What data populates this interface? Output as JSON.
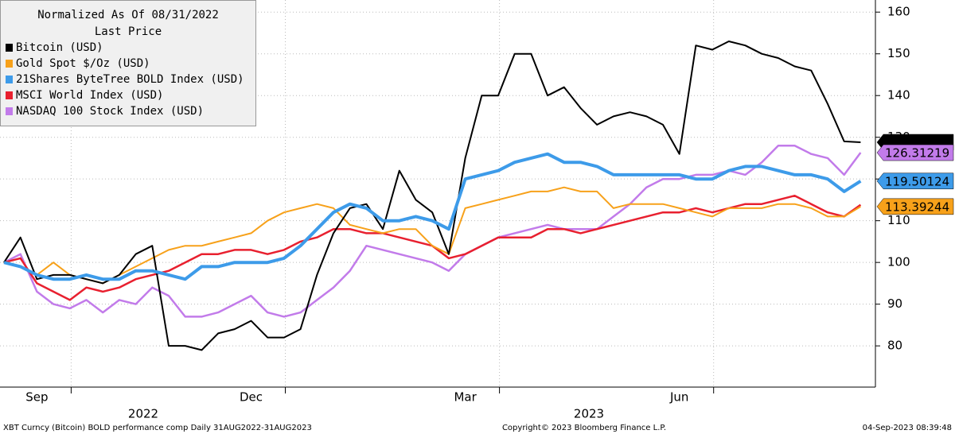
{
  "chart_data": {
    "type": "line",
    "legend_title": "Normalized As Of 08/31/2022",
    "legend_subtitle": "Last Price",
    "legend_position": "upper left",
    "grid": true,
    "categories": [
      null,
      null,
      "Sep",
      null,
      null,
      null,
      null,
      null,
      null,
      null,
      null,
      null,
      null,
      null,
      null,
      "Dec",
      null,
      null,
      null,
      null,
      null,
      null,
      null,
      null,
      null,
      null,
      null,
      null,
      "Mar",
      null,
      null,
      null,
      null,
      null,
      null,
      null,
      null,
      null,
      null,
      null,
      null,
      "Jun",
      null,
      null,
      null,
      null,
      null,
      null,
      null,
      null,
      null,
      null,
      null
    ],
    "year_labels": [
      "2022",
      "2023"
    ],
    "ylim": [
      70.5,
      162.9
    ],
    "yticks": [
      80,
      90,
      100,
      110,
      120,
      130,
      140,
      150,
      160
    ],
    "series": [
      {
        "name": "Bitcoin (USD)",
        "color": "#000000",
        "values": [
          100,
          106,
          96,
          97,
          97,
          96,
          95,
          97,
          102,
          104,
          80,
          80,
          79,
          83,
          84,
          86,
          82,
          82,
          84,
          97,
          107,
          113,
          114,
          108,
          122,
          115,
          112,
          102,
          125,
          140,
          140,
          150,
          150,
          140,
          142,
          137,
          133,
          135,
          136,
          135,
          133,
          126,
          152,
          151,
          153,
          152,
          150,
          149,
          147,
          146,
          138,
          129,
          128.79906
        ]
      },
      {
        "name": "Gold Spot $/Oz (USD)",
        "color": "#f7a11a",
        "values": [
          100,
          99,
          97,
          100,
          97,
          96,
          95,
          97,
          99,
          101,
          103,
          104,
          104,
          105,
          106,
          107,
          110,
          112,
          113,
          114,
          113,
          109,
          108,
          107,
          108,
          108,
          104,
          102,
          113,
          114,
          115,
          116,
          117,
          117,
          118,
          117,
          117,
          113,
          114,
          114,
          114,
          113,
          112,
          111,
          113,
          113,
          113,
          114,
          114,
          113,
          111,
          111,
          113.39244
        ]
      },
      {
        "name": "21Shares ByteTree BOLD Index (USD)",
        "color": "#3d9be9",
        "values": [
          100,
          99,
          97,
          96,
          96,
          97,
          96,
          96,
          98,
          98,
          97,
          96,
          99,
          99,
          100,
          100,
          100,
          101,
          104,
          108,
          112,
          114,
          113,
          110,
          110,
          111,
          110,
          108,
          120,
          121,
          122,
          124,
          125,
          126,
          124,
          124,
          123,
          121,
          121,
          121,
          121,
          121,
          120,
          120,
          122,
          123,
          123,
          122,
          121,
          121,
          120,
          117,
          119.50124
        ]
      },
      {
        "name": "MSCI World Index (USD)",
        "color": "#e8202f",
        "values": [
          100,
          101,
          95,
          93,
          91,
          94,
          93,
          94,
          96,
          97,
          98,
          100,
          102,
          102,
          103,
          103,
          102,
          103,
          105,
          106,
          108,
          108,
          107,
          107,
          106,
          105,
          104,
          101,
          102,
          104,
          106,
          106,
          106,
          108,
          108,
          107,
          108,
          109,
          110,
          111,
          112,
          112,
          113,
          112,
          113,
          114,
          114,
          115,
          116,
          114,
          112,
          111,
          113.8
        ]
      },
      {
        "name": "NASDAQ 100 Stock Index (USD)",
        "color": "#c27bea",
        "values": [
          100,
          102,
          93,
          90,
          89,
          91,
          88,
          91,
          90,
          94,
          92,
          87,
          87,
          88,
          90,
          92,
          88,
          87,
          88,
          91,
          94,
          98,
          104,
          103,
          102,
          101,
          100,
          98,
          102,
          104,
          106,
          107,
          108,
          109,
          108,
          108,
          108,
          111,
          114,
          118,
          120,
          120,
          121,
          121,
          122,
          121,
          124,
          128,
          128,
          126,
          125,
          121,
          126.31219
        ]
      }
    ],
    "end_labels": [
      0,
      4,
      2,
      1
    ],
    "footer_left": "XBT Curncy (Bitcoin) BOLD performance comp  Daily 31AUG2022-31AUG2023",
    "footer_center": "Copyright© 2023 Bloomberg Finance L.P.",
    "footer_right": "04-Sep-2023 08:39:48"
  }
}
